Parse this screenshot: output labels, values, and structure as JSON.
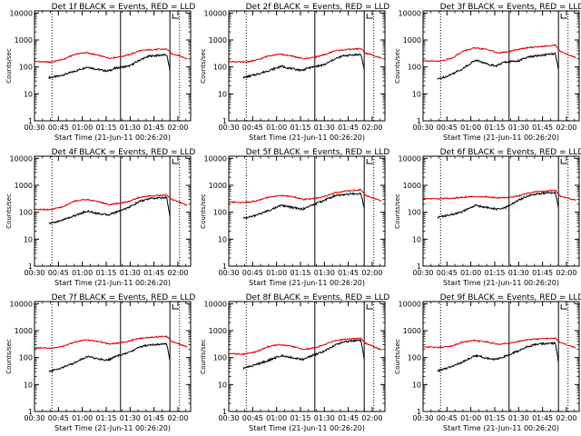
{
  "chart_data": [
    {
      "type": "line",
      "title": "Det 1f BLACK = Events, RED = LLD",
      "xlabel": "Start Time (21-Jun-11 00:26:20)",
      "ylabel": "Counts/sec",
      "x_ticks": [
        "00:30",
        "00:45",
        "01:00",
        "01:15",
        "01:30",
        "01:45",
        "02:00"
      ],
      "y_ticks": [
        "1",
        "10",
        "100",
        "1000",
        "10000"
      ],
      "y_scale": "log",
      "xlim": [
        "00:30",
        "02:08"
      ],
      "ylim": [
        1,
        12000
      ],
      "series": [
        {
          "label": "Events",
          "color": "#000000",
          "x": [
            "00:39",
            "00:45",
            "00:54",
            "01:03",
            "01:10",
            "01:16",
            "01:21",
            "01:30",
            "01:36",
            "01:42",
            "01:48",
            "01:53",
            "01:55"
          ],
          "y": [
            40,
            45,
            65,
            100,
            80,
            70,
            90,
            110,
            180,
            250,
            270,
            280,
            75
          ]
        },
        {
          "label": "LLD",
          "color": "#e00000",
          "x": [
            "00:30",
            "00:40",
            "00:48",
            "00:55",
            "01:02",
            "01:10",
            "01:17",
            "01:24",
            "01:30",
            "01:36",
            "01:42",
            "01:48",
            "01:53",
            "01:56",
            "02:00",
            "02:06"
          ],
          "y": [
            160,
            150,
            190,
            290,
            340,
            270,
            210,
            240,
            290,
            400,
            430,
            450,
            460,
            310,
            270,
            200
          ]
        }
      ]
    },
    {
      "type": "line",
      "title": "Det 2f BLACK = Events, RED = LLD",
      "xlabel": "Start Time (21-Jun-11 00:26:20)",
      "ylabel": "Counts/sec",
      "x_ticks": [
        "00:30",
        "00:45",
        "01:00",
        "01:15",
        "01:30",
        "01:45",
        "02:00"
      ],
      "y_ticks": [
        "1",
        "10",
        "100",
        "1000",
        "10000"
      ],
      "y_scale": "log",
      "xlim": [
        "00:30",
        "02:08"
      ],
      "ylim": [
        1,
        12000
      ],
      "series": [
        {
          "label": "Events",
          "color": "#000000",
          "x": [
            "00:39",
            "00:45",
            "00:54",
            "01:03",
            "01:10",
            "01:16",
            "01:21",
            "01:30",
            "01:36",
            "01:42",
            "01:48",
            "01:53",
            "01:55"
          ],
          "y": [
            40,
            48,
            70,
            105,
            85,
            75,
            95,
            120,
            190,
            260,
            280,
            290,
            80
          ]
        },
        {
          "label": "LLD",
          "color": "#e00000",
          "x": [
            "00:30",
            "00:40",
            "00:48",
            "00:55",
            "01:02",
            "01:10",
            "01:17",
            "01:24",
            "01:30",
            "01:36",
            "01:42",
            "01:48",
            "01:53",
            "01:56",
            "02:00",
            "02:06"
          ],
          "y": [
            160,
            150,
            180,
            260,
            300,
            250,
            200,
            230,
            280,
            390,
            430,
            460,
            480,
            320,
            280,
            210
          ]
        }
      ]
    },
    {
      "type": "line",
      "title": "Det 3f BLACK = Events, RED = LLD",
      "xlabel": "Start Time (21-Jun-11 00:26:20)",
      "ylabel": "Counts/sec",
      "x_ticks": [
        "00:30",
        "00:45",
        "01:00",
        "01:15",
        "01:30",
        "01:45",
        "02:00"
      ],
      "y_ticks": [
        "1",
        "10",
        "100",
        "1000",
        "10000"
      ],
      "y_scale": "log",
      "xlim": [
        "00:30",
        "02:08"
      ],
      "ylim": [
        1,
        12000
      ],
      "series": [
        {
          "label": "Events",
          "color": "#000000",
          "x": [
            "00:39",
            "00:45",
            "00:54",
            "01:03",
            "01:10",
            "01:16",
            "01:21",
            "01:30",
            "01:36",
            "01:42",
            "01:48",
            "01:53",
            "01:55"
          ],
          "y": [
            35,
            45,
            80,
            180,
            130,
            110,
            150,
            170,
            230,
            260,
            290,
            310,
            75
          ]
        },
        {
          "label": "LLD",
          "color": "#e00000",
          "x": [
            "00:30",
            "00:40",
            "00:48",
            "00:55",
            "01:02",
            "01:10",
            "01:17",
            "01:24",
            "01:30",
            "01:36",
            "01:42",
            "01:48",
            "01:53",
            "01:56",
            "02:00",
            "02:06"
          ],
          "y": [
            170,
            160,
            210,
            380,
            500,
            450,
            330,
            370,
            450,
            520,
            560,
            600,
            650,
            380,
            300,
            220
          ]
        }
      ]
    },
    {
      "type": "line",
      "title": "Det 4f BLACK = Events, RED = LLD",
      "xlabel": "Start Time (21-Jun-11 00:26:20)",
      "ylabel": "Counts/sec",
      "x_ticks": [
        "00:30",
        "00:45",
        "01:00",
        "01:15",
        "01:30",
        "01:45",
        "02:00"
      ],
      "y_ticks": [
        "1",
        "10",
        "100",
        "1000",
        "10000"
      ],
      "y_scale": "log",
      "xlim": [
        "00:30",
        "02:08"
      ],
      "ylim": [
        1,
        12000
      ],
      "series": [
        {
          "label": "Events",
          "color": "#000000",
          "x": [
            "00:39",
            "00:45",
            "00:54",
            "01:03",
            "01:10",
            "01:16",
            "01:21",
            "01:30",
            "01:36",
            "01:42",
            "01:48",
            "01:53",
            "01:55"
          ],
          "y": [
            38,
            46,
            70,
            110,
            90,
            80,
            100,
            160,
            250,
            320,
            340,
            350,
            70
          ]
        },
        {
          "label": "LLD",
          "color": "#e00000",
          "x": [
            "00:30",
            "00:40",
            "00:48",
            "00:55",
            "01:02",
            "01:10",
            "01:17",
            "01:24",
            "01:30",
            "01:36",
            "01:42",
            "01:48",
            "01:53",
            "01:56",
            "02:00",
            "02:06"
          ],
          "y": [
            130,
            125,
            160,
            260,
            300,
            250,
            190,
            220,
            260,
            360,
            400,
            420,
            440,
            300,
            250,
            180
          ]
        }
      ]
    },
    {
      "type": "line",
      "title": "Det 5f BLACK = Events, RED = LLD",
      "xlabel": "Start Time (21-Jun-11 00:26:20)",
      "ylabel": "Counts/sec",
      "x_ticks": [
        "00:30",
        "00:45",
        "01:00",
        "01:15",
        "01:30",
        "01:45",
        "02:00"
      ],
      "y_ticks": [
        "1",
        "10",
        "100",
        "1000",
        "10000"
      ],
      "y_scale": "log",
      "xlim": [
        "00:30",
        "02:08"
      ],
      "ylim": [
        1,
        12000
      ],
      "series": [
        {
          "label": "Events",
          "color": "#000000",
          "x": [
            "00:39",
            "00:45",
            "00:54",
            "01:03",
            "01:10",
            "01:16",
            "01:21",
            "01:30",
            "01:36",
            "01:42",
            "01:48",
            "01:53",
            "01:55"
          ],
          "y": [
            60,
            70,
            110,
            180,
            150,
            130,
            170,
            280,
            400,
            450,
            480,
            500,
            140
          ]
        },
        {
          "label": "LLD",
          "color": "#e00000",
          "x": [
            "00:30",
            "00:40",
            "00:48",
            "00:55",
            "01:02",
            "01:10",
            "01:17",
            "01:24",
            "01:30",
            "01:36",
            "01:42",
            "01:48",
            "01:53",
            "01:56",
            "02:00",
            "02:06"
          ],
          "y": [
            240,
            230,
            270,
            360,
            420,
            380,
            300,
            320,
            380,
            520,
            600,
            650,
            680,
            420,
            350,
            260
          ]
        }
      ]
    },
    {
      "type": "line",
      "title": "Det 6f BLACK = Events, RED = LLD",
      "xlabel": "Start Time (21-Jun-11 00:26:20)",
      "ylabel": "Counts/sec",
      "x_ticks": [
        "00:30",
        "00:45",
        "01:00",
        "01:15",
        "01:30",
        "01:45",
        "02:00"
      ],
      "y_ticks": [
        "1",
        "10",
        "100",
        "1000",
        "10000"
      ],
      "y_scale": "log",
      "xlim": [
        "00:30",
        "02:08"
      ],
      "ylim": [
        1,
        12000
      ],
      "series": [
        {
          "label": "Events",
          "color": "#000000",
          "x": [
            "00:39",
            "00:45",
            "00:54",
            "01:03",
            "01:10",
            "01:16",
            "01:21",
            "01:30",
            "01:36",
            "01:42",
            "01:48",
            "01:53",
            "01:55"
          ],
          "y": [
            65,
            75,
            100,
            180,
            150,
            130,
            140,
            280,
            420,
            480,
            520,
            550,
            150
          ]
        },
        {
          "label": "LLD",
          "color": "#e00000",
          "x": [
            "00:30",
            "00:40",
            "00:48",
            "00:55",
            "01:02",
            "01:10",
            "01:17",
            "01:24",
            "01:30",
            "01:36",
            "01:42",
            "01:48",
            "01:53",
            "01:56",
            "02:00",
            "02:06"
          ],
          "y": [
            320,
            320,
            330,
            360,
            380,
            370,
            340,
            360,
            400,
            520,
            580,
            620,
            650,
            400,
            340,
            280
          ]
        }
      ]
    },
    {
      "type": "line",
      "title": "Det 7f BLACK = Events, RED = LLD",
      "xlabel": "Start Time (21-Jun-11 00:26:20)",
      "ylabel": "Counts/sec",
      "x_ticks": [
        "00:30",
        "00:45",
        "01:00",
        "01:15",
        "01:30",
        "01:45",
        "02:00"
      ],
      "y_ticks": [
        "1",
        "10",
        "100",
        "1000",
        "10000"
      ],
      "y_scale": "log",
      "xlim": [
        "00:30",
        "02:08"
      ],
      "ylim": [
        1,
        12000
      ],
      "series": [
        {
          "label": "Events",
          "color": "#000000",
          "x": [
            "00:39",
            "00:45",
            "00:54",
            "01:03",
            "01:10",
            "01:16",
            "01:21",
            "01:30",
            "01:36",
            "01:42",
            "01:48",
            "01:53",
            "01:55"
          ],
          "y": [
            30,
            38,
            60,
            110,
            90,
            80,
            110,
            160,
            250,
            300,
            310,
            320,
            80
          ]
        },
        {
          "label": "LLD",
          "color": "#e00000",
          "x": [
            "00:30",
            "00:40",
            "00:48",
            "00:55",
            "01:02",
            "01:10",
            "01:17",
            "01:24",
            "01:30",
            "01:36",
            "01:42",
            "01:48",
            "01:53",
            "01:56",
            "02:00",
            "02:06"
          ],
          "y": [
            230,
            220,
            260,
            380,
            450,
            400,
            320,
            350,
            420,
            520,
            560,
            590,
            610,
            400,
            330,
            250
          ]
        }
      ]
    },
    {
      "type": "line",
      "title": "Det 8f BLACK = Events, RED = LLD",
      "xlabel": "Start Time (21-Jun-11 00:26:20)",
      "ylabel": "Counts/sec",
      "x_ticks": [
        "00:30",
        "00:45",
        "01:00",
        "01:15",
        "01:30",
        "01:45",
        "02:00"
      ],
      "y_ticks": [
        "1",
        "10",
        "100",
        "1000",
        "10000"
      ],
      "y_scale": "log",
      "xlim": [
        "00:30",
        "02:08"
      ],
      "ylim": [
        1,
        12000
      ],
      "series": [
        {
          "label": "Events",
          "color": "#000000",
          "x": [
            "00:39",
            "00:45",
            "00:54",
            "01:03",
            "01:10",
            "01:16",
            "01:21",
            "01:30",
            "01:36",
            "01:42",
            "01:48",
            "01:53",
            "01:55"
          ],
          "y": [
            40,
            50,
            75,
            120,
            100,
            85,
            110,
            170,
            280,
            380,
            420,
            440,
            90
          ]
        },
        {
          "label": "LLD",
          "color": "#e00000",
          "x": [
            "00:30",
            "00:40",
            "00:48",
            "00:55",
            "01:02",
            "01:10",
            "01:17",
            "01:24",
            "01:30",
            "01:36",
            "01:42",
            "01:48",
            "01:53",
            "01:56",
            "02:00",
            "02:06"
          ],
          "y": [
            140,
            135,
            170,
            260,
            300,
            260,
            200,
            230,
            300,
            420,
            470,
            500,
            520,
            330,
            270,
            190
          ]
        }
      ]
    },
    {
      "type": "line",
      "title": "Det 9f BLACK = Events, RED = LLD",
      "xlabel": "Start Time (21-Jun-11 00:26:20)",
      "ylabel": "Counts/sec",
      "x_ticks": [
        "00:30",
        "00:45",
        "01:00",
        "01:15",
        "01:30",
        "01:45",
        "02:00"
      ],
      "y_ticks": [
        "1",
        "10",
        "100",
        "1000",
        "10000"
      ],
      "y_scale": "log",
      "xlim": [
        "00:30",
        "02:08"
      ],
      "ylim": [
        1,
        12000
      ],
      "series": [
        {
          "label": "Events",
          "color": "#000000",
          "x": [
            "00:39",
            "00:45",
            "00:54",
            "01:03",
            "01:10",
            "01:16",
            "01:21",
            "01:30",
            "01:36",
            "01:42",
            "01:48",
            "01:53",
            "01:55"
          ],
          "y": [
            32,
            40,
            65,
            120,
            95,
            85,
            110,
            180,
            260,
            320,
            330,
            340,
            70
          ]
        },
        {
          "label": "LLD",
          "color": "#e00000",
          "x": [
            "00:30",
            "00:40",
            "00:48",
            "00:55",
            "01:02",
            "01:10",
            "01:17",
            "01:24",
            "01:30",
            "01:36",
            "01:42",
            "01:48",
            "01:53",
            "01:56",
            "02:00",
            "02:06"
          ],
          "y": [
            250,
            240,
            270,
            380,
            430,
            380,
            310,
            340,
            400,
            470,
            490,
            510,
            530,
            360,
            300,
            230
          ]
        }
      ]
    }
  ],
  "markers": {
    "dotted_lines": [
      "00:41",
      "02:01"
    ],
    "solid_lines": [
      "01:24",
      "01:55"
    ]
  },
  "legend": {
    "events_color": "#000000",
    "lld_color": "#e00000"
  }
}
